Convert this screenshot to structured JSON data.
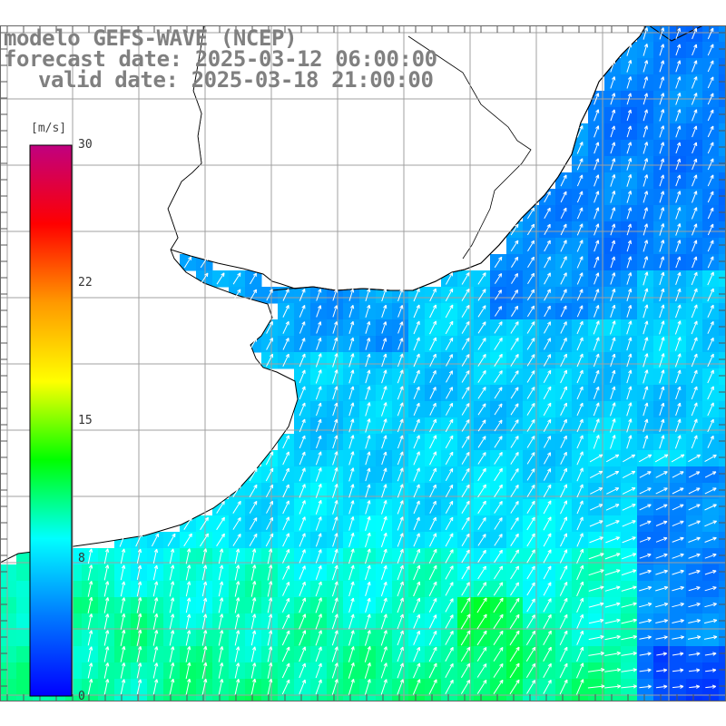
{
  "title": {
    "model": "modelo GEFS-WAVE (NCEP)",
    "forecast_date": "forecast date: 2025-03-12 06:00:00",
    "valid_date": "valid date: 2025-03-18 21:00:00"
  },
  "legend": {
    "unit": "[m/s]",
    "min": 0,
    "max": 30,
    "ticks": [
      "30",
      "22",
      "15",
      "8",
      "0"
    ],
    "tick_values": [
      30,
      22,
      15,
      8,
      0
    ],
    "colors": [
      "#0000ff",
      "#0078ff",
      "#00ffff",
      "#00ff00",
      "#ffff00",
      "#ff9900",
      "#ff0000",
      "#c00080"
    ]
  },
  "map": {
    "land_color": "#ffffff",
    "coast_color": "#000000",
    "grid_color": "#a0a0a0",
    "grid_on": true,
    "arrow_color": "#ffffff",
    "dominant_direction": "north-northeast"
  }
}
